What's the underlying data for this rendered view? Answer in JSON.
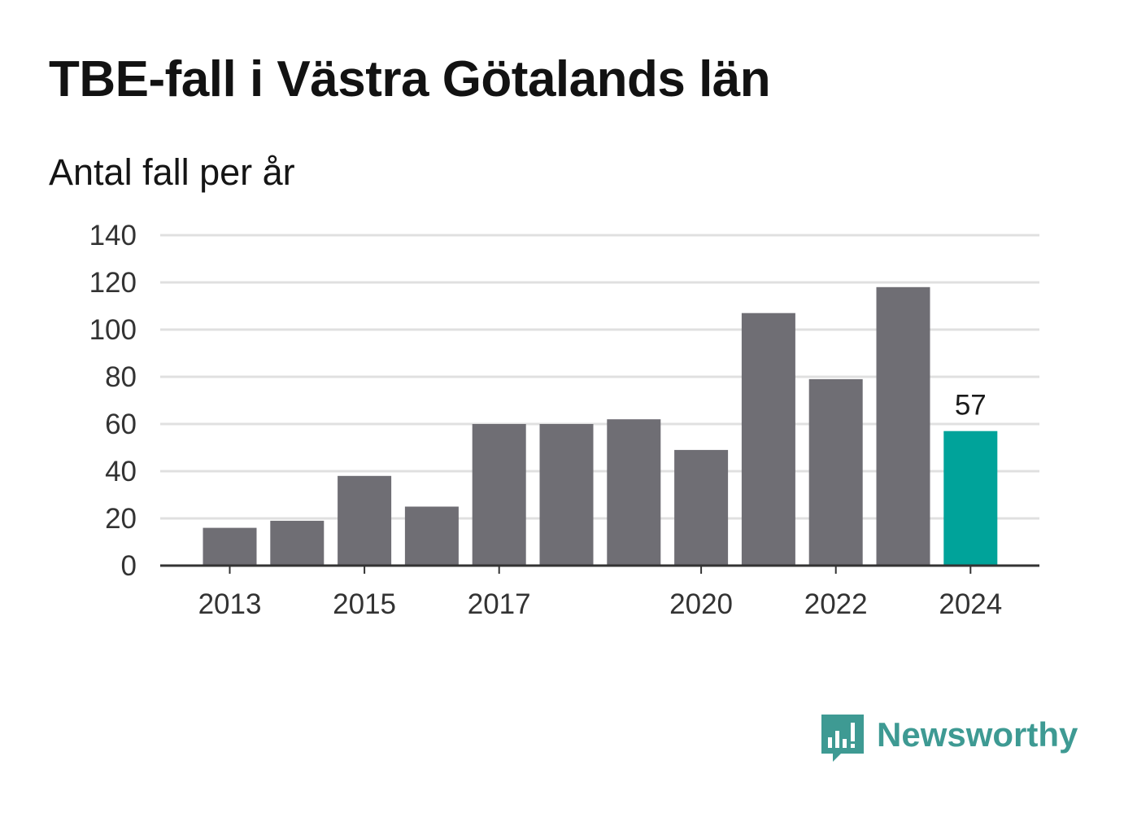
{
  "colors": {
    "bar": "#6f6e74",
    "highlight": "#00a39a",
    "grid": "#e0e0e0",
    "axis": "#333333",
    "brand": "#3e9a93"
  },
  "branding": {
    "logo_icon": "newsworthy-bars-icon",
    "logo_text": "Newsworthy"
  },
  "chart_data": {
    "type": "bar",
    "title": "TBE-fall i Västra Götalands län",
    "subtitle": "Antal fall per år",
    "xlabel": "",
    "ylabel": "",
    "categories": [
      "2013",
      "2014",
      "2015",
      "2016",
      "2017",
      "2018",
      "2019",
      "2020",
      "2021",
      "2022",
      "2023",
      "2024"
    ],
    "values": [
      16,
      19,
      38,
      25,
      60,
      60,
      62,
      49,
      107,
      79,
      118,
      57
    ],
    "highlight_index": 11,
    "data_labels": [
      {
        "index": 11,
        "text": "57"
      }
    ],
    "ylim": [
      0,
      140
    ],
    "yticks": [
      0,
      20,
      40,
      60,
      80,
      100,
      120,
      140
    ],
    "xtick_labels": [
      "2013",
      "2015",
      "2017",
      "2020",
      "2022",
      "2024"
    ],
    "grid": true,
    "legend": "none"
  }
}
